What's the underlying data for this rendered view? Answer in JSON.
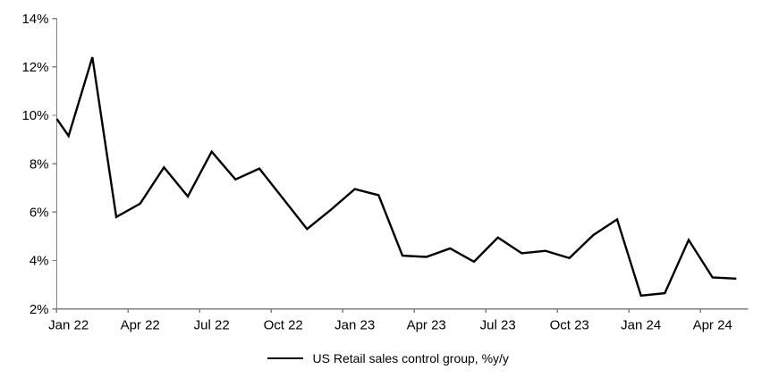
{
  "chart_data": {
    "type": "line",
    "title": "",
    "legend": "US Retail sales control group, %y/y",
    "line_color": "#000000",
    "axis_color": "#808080",
    "text_color": "#000000",
    "grid": false,
    "legend_position": "bottom-center",
    "ylim": [
      2,
      14
    ],
    "y_ticks": [
      {
        "label": "2%",
        "value": 2
      },
      {
        "label": "4%",
        "value": 4
      },
      {
        "label": "6%",
        "value": 6
      },
      {
        "label": "8%",
        "value": 8
      },
      {
        "label": "10%",
        "value": 10
      },
      {
        "label": "12%",
        "value": 12
      },
      {
        "label": "14%",
        "value": 14
      }
    ],
    "x_ticks": [
      {
        "label": "Jan 22",
        "month_index": 0
      },
      {
        "label": "Apr 22",
        "month_index": 3
      },
      {
        "label": "Jul 22",
        "month_index": 6
      },
      {
        "label": "Oct 22",
        "month_index": 9
      },
      {
        "label": "Jan 23",
        "month_index": 12
      },
      {
        "label": "Apr 23",
        "month_index": 15
      },
      {
        "label": "Jul 23",
        "month_index": 18
      },
      {
        "label": "Oct 23",
        "month_index": 21
      },
      {
        "label": "Jan 24",
        "month_index": 24
      },
      {
        "label": "Apr 24",
        "month_index": 27
      }
    ],
    "months": [
      "Jan 22",
      "Feb 22",
      "Mar 22",
      "Apr 22",
      "May 22",
      "Jun 22",
      "Jul 22",
      "Aug 22",
      "Sep 22",
      "Oct 22",
      "Nov 22",
      "Dec 22",
      "Jan 23",
      "Feb 23",
      "Mar 23",
      "Apr 23",
      "May 23",
      "Jun 23",
      "Jul 23",
      "Aug 23",
      "Sep 23",
      "Oct 23",
      "Nov 23",
      "Dec 23",
      "Jan 24",
      "Feb 24",
      "Mar 24",
      "Apr 24",
      "May 24"
    ],
    "values": [
      9.15,
      12.4,
      5.8,
      6.35,
      7.85,
      6.65,
      8.5,
      7.35,
      7.8,
      6.55,
      5.3,
      6.1,
      6.95,
      6.7,
      4.2,
      4.15,
      4.5,
      3.95,
      4.95,
      4.3,
      4.4,
      4.1,
      5.05,
      5.7,
      2.55,
      2.65,
      4.85,
      3.3,
      3.25
    ],
    "value_at_left_axis_clip": 9.85
  }
}
